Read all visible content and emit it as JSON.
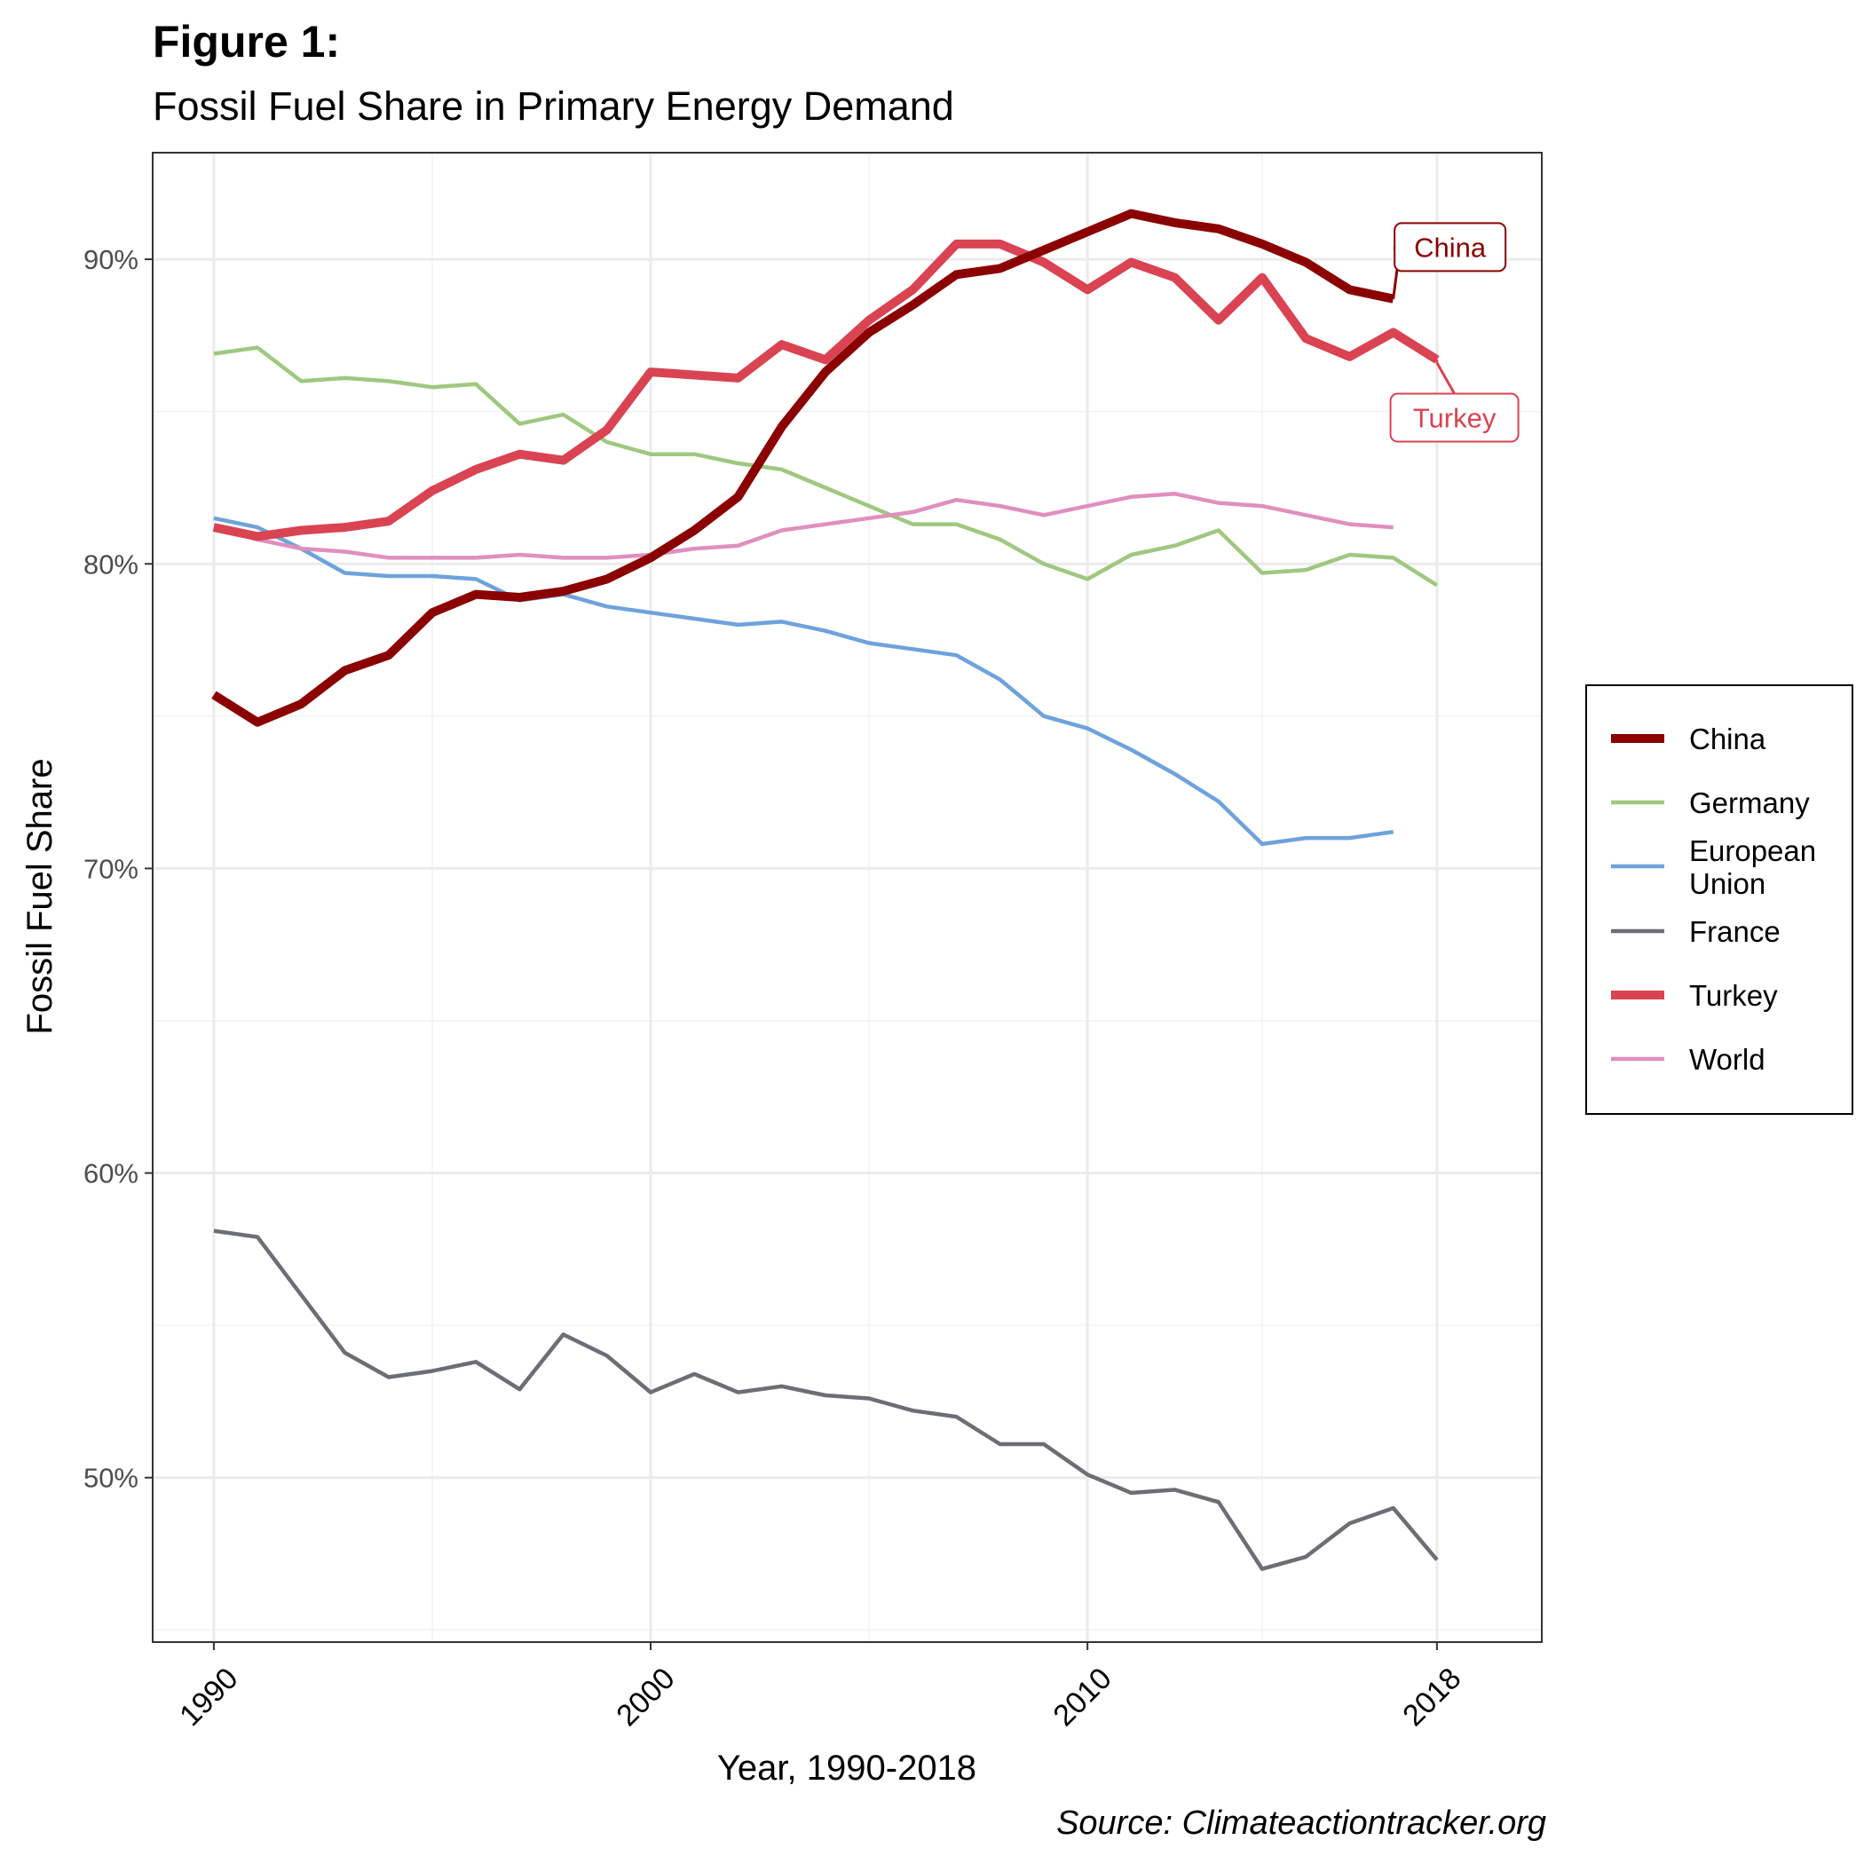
{
  "figure": {
    "title": "Figure 1:",
    "subtitle": "Fossil Fuel Share in Primary Energy Demand",
    "caption": "Source: Climateactiontracker.org"
  },
  "chart_data": {
    "type": "line",
    "xlabel": "Year, 1990-2018",
    "ylabel": "Fossil Fuel Share",
    "xlim": [
      1988.6,
      2020.4
    ],
    "ylim": [
      44.6,
      93.5
    ],
    "x_ticks": [
      1990,
      2000,
      2010,
      2018
    ],
    "x_tick_labels": [
      "1990",
      "2000",
      "2010",
      "2018"
    ],
    "y_ticks": [
      50,
      60,
      70,
      80,
      90
    ],
    "y_tick_labels": [
      "50%",
      "60%",
      "70%",
      "80%",
      "90%"
    ],
    "grid": true,
    "legend_position": "right",
    "series": [
      {
        "name": "China",
        "color": "#8b0000",
        "width": "thick",
        "x": [
          1990,
          1991,
          1992,
          1993,
          1994,
          1995,
          1996,
          1997,
          1998,
          1999,
          2000,
          2001,
          2002,
          2003,
          2004,
          2005,
          2006,
          2007,
          2008,
          2009,
          2010,
          2011,
          2012,
          2013,
          2014,
          2015,
          2016,
          2017
        ],
        "y": [
          75.7,
          74.8,
          75.4,
          76.5,
          77.0,
          78.4,
          79.0,
          78.9,
          79.1,
          79.5,
          80.2,
          81.1,
          82.2,
          84.5,
          86.3,
          87.6,
          88.5,
          89.5,
          89.7,
          90.3,
          90.9,
          91.5,
          91.2,
          91.0,
          90.5,
          89.9,
          89.0,
          88.7
        ]
      },
      {
        "name": "Germany",
        "color": "#9ec87f",
        "width": "thin",
        "x": [
          1990,
          1991,
          1992,
          1993,
          1994,
          1995,
          1996,
          1997,
          1998,
          1999,
          2000,
          2001,
          2002,
          2003,
          2004,
          2005,
          2006,
          2007,
          2008,
          2009,
          2010,
          2011,
          2012,
          2013,
          2014,
          2015,
          2016,
          2017,
          2018
        ],
        "y": [
          86.9,
          87.1,
          86.0,
          86.1,
          86.0,
          85.8,
          85.9,
          84.6,
          84.9,
          84.0,
          83.6,
          83.6,
          83.3,
          83.1,
          82.5,
          81.9,
          81.3,
          81.3,
          80.8,
          80.0,
          79.5,
          80.3,
          80.6,
          81.1,
          79.7,
          79.8,
          80.3,
          80.2,
          79.3
        ]
      },
      {
        "name": "European Union",
        "legend_lines": [
          "European",
          "Union"
        ],
        "color": "#6ea2dc",
        "width": "thin",
        "x": [
          1990,
          1991,
          1992,
          1993,
          1994,
          1995,
          1996,
          1997,
          1998,
          1999,
          2000,
          2001,
          2002,
          2003,
          2004,
          2005,
          2006,
          2007,
          2008,
          2009,
          2010,
          2011,
          2012,
          2013,
          2014,
          2015,
          2016,
          2017
        ],
        "y": [
          81.5,
          81.2,
          80.5,
          79.7,
          79.6,
          79.6,
          79.5,
          78.8,
          79.0,
          78.6,
          78.4,
          78.2,
          78.0,
          78.1,
          77.8,
          77.4,
          77.2,
          77.0,
          76.2,
          75.0,
          74.6,
          73.9,
          73.1,
          72.2,
          70.8,
          71.0,
          71.0,
          71.2
        ]
      },
      {
        "name": "France",
        "color": "#6b6f75",
        "width": "thin",
        "x": [
          1990,
          1991,
          1992,
          1993,
          1994,
          1995,
          1996,
          1997,
          1998,
          1999,
          2000,
          2001,
          2002,
          2003,
          2004,
          2005,
          2006,
          2007,
          2008,
          2009,
          2010,
          2011,
          2012,
          2013,
          2014,
          2015,
          2016,
          2017,
          2018
        ],
        "y": [
          58.1,
          57.9,
          56.0,
          54.1,
          53.3,
          53.5,
          53.8,
          52.9,
          54.7,
          54.0,
          52.8,
          53.4,
          52.8,
          53.0,
          52.7,
          52.6,
          52.2,
          52.0,
          51.1,
          51.1,
          50.1,
          49.5,
          49.6,
          49.2,
          47.0,
          47.4,
          48.5,
          49.0,
          47.3
        ]
      },
      {
        "name": "Turkey",
        "color": "#d94352",
        "width": "thick",
        "x": [
          1990,
          1991,
          1992,
          1993,
          1994,
          1995,
          1996,
          1997,
          1998,
          1999,
          2000,
          2001,
          2002,
          2003,
          2004,
          2005,
          2006,
          2007,
          2008,
          2009,
          2010,
          2011,
          2012,
          2013,
          2014,
          2015,
          2016,
          2017,
          2018
        ],
        "y": [
          81.2,
          80.9,
          81.1,
          81.2,
          81.4,
          82.4,
          83.1,
          83.6,
          83.4,
          84.4,
          86.3,
          86.2,
          86.1,
          87.2,
          86.7,
          88.0,
          89.0,
          90.5,
          90.5,
          89.9,
          89.0,
          89.9,
          89.4,
          88.0,
          89.4,
          87.4,
          86.8,
          87.6,
          86.7
        ]
      },
      {
        "name": "World",
        "color": "#e08fbe",
        "width": "thin",
        "x": [
          1990,
          1991,
          1992,
          1993,
          1994,
          1995,
          1996,
          1997,
          1998,
          1999,
          2000,
          2001,
          2002,
          2003,
          2004,
          2005,
          2006,
          2007,
          2008,
          2009,
          2010,
          2011,
          2012,
          2013,
          2014,
          2015,
          2016,
          2017
        ],
        "y": [
          81.2,
          80.8,
          80.5,
          80.4,
          80.2,
          80.2,
          80.2,
          80.3,
          80.2,
          80.2,
          80.3,
          80.5,
          80.6,
          81.1,
          81.3,
          81.5,
          81.7,
          82.1,
          81.9,
          81.6,
          81.9,
          82.2,
          82.3,
          82.0,
          81.9,
          81.6,
          81.3,
          81.2
        ]
      }
    ],
    "callouts": [
      {
        "series": "China",
        "label": "China",
        "point_year": 2017.1,
        "point_value": 89.8,
        "box_year": 2018.3,
        "box_value": 90.4
      },
      {
        "series": "Turkey",
        "label": "Turkey",
        "point_year": 2018.0,
        "point_value": 86.6,
        "box_year": 2018.4,
        "box_value": 84.8
      }
    ]
  }
}
